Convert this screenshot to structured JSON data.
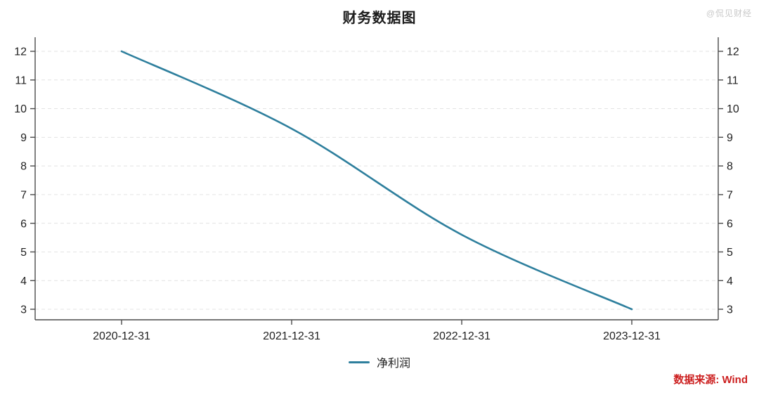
{
  "header": {
    "title": "财务数据图",
    "watermark": "@侃见财经"
  },
  "legend": {
    "items": [
      {
        "label": "净利润",
        "color": "#2e7f9d"
      }
    ]
  },
  "footer": {
    "source_text": "数据来源: Wind",
    "color": "#cc1f1f"
  },
  "chart_data": {
    "type": "line",
    "title": "财务数据图",
    "categories": [
      "2020-12-31",
      "2021-12-31",
      "2022-12-31",
      "2023-12-31"
    ],
    "series": [
      {
        "name": "净利润",
        "values": [
          12.0,
          9.3,
          5.6,
          3.0
        ],
        "color": "#2e7f9d"
      }
    ],
    "xlabel": "",
    "ylabel": "",
    "ylim": [
      3,
      12
    ],
    "yticks": [
      3,
      4,
      5,
      6,
      7,
      8,
      9,
      10,
      11,
      12
    ],
    "y_axis_sides": [
      "left",
      "right"
    ],
    "grid": "horizontal-dashed",
    "grid_color": "#e3e3e3",
    "axis_color": "#4a4a4a",
    "tick_label_color": "#1f1f1f",
    "legend_position": "bottom-center"
  }
}
